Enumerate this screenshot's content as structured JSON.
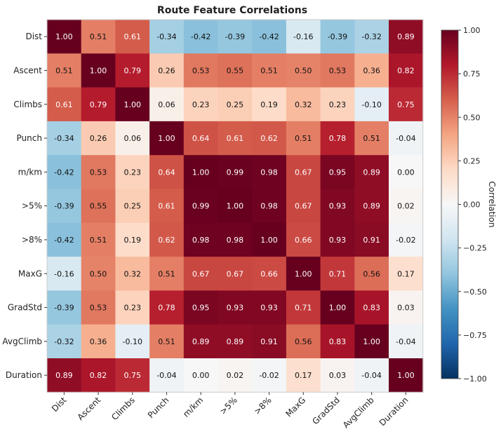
{
  "chart_data": {
    "type": "heatmap",
    "title": "Route Feature Correlations",
    "row_labels": [
      "Dist",
      "Ascent",
      "Climbs",
      "Punch",
      "m/km",
      ">5%",
      ">8%",
      "MaxG",
      "GradStd",
      "AvgClimb",
      "Duration"
    ],
    "col_labels": [
      "Dist",
      "Ascent",
      "Climbs",
      "Punch",
      "m/km",
      ">5%",
      ">8%",
      "MaxG",
      "GradStd",
      "AvgClimb",
      "Duration"
    ],
    "values": [
      [
        1.0,
        0.51,
        0.61,
        -0.34,
        -0.42,
        -0.39,
        -0.42,
        -0.16,
        -0.39,
        -0.32,
        0.89
      ],
      [
        0.51,
        1.0,
        0.79,
        0.26,
        0.53,
        0.55,
        0.51,
        0.5,
        0.53,
        0.36,
        0.82
      ],
      [
        0.61,
        0.79,
        1.0,
        0.06,
        0.23,
        0.25,
        0.19,
        0.32,
        0.23,
        -0.1,
        0.75
      ],
      [
        -0.34,
        0.26,
        0.06,
        1.0,
        0.64,
        0.61,
        0.62,
        0.51,
        0.78,
        0.51,
        -0.04
      ],
      [
        -0.42,
        0.53,
        0.23,
        0.64,
        1.0,
        0.99,
        0.98,
        0.67,
        0.95,
        0.89,
        0.0
      ],
      [
        -0.39,
        0.55,
        0.25,
        0.61,
        0.99,
        1.0,
        0.98,
        0.67,
        0.93,
        0.89,
        0.02
      ],
      [
        -0.42,
        0.51,
        0.19,
        0.62,
        0.98,
        0.98,
        1.0,
        0.66,
        0.93,
        0.91,
        -0.02
      ],
      [
        -0.16,
        0.5,
        0.32,
        0.51,
        0.67,
        0.67,
        0.66,
        1.0,
        0.71,
        0.56,
        0.17
      ],
      [
        -0.39,
        0.53,
        0.23,
        0.78,
        0.95,
        0.93,
        0.93,
        0.71,
        1.0,
        0.83,
        0.03
      ],
      [
        -0.32,
        0.36,
        -0.1,
        0.51,
        0.89,
        0.89,
        0.91,
        0.56,
        0.83,
        1.0,
        -0.04
      ],
      [
        0.89,
        0.82,
        0.75,
        -0.04,
        0.0,
        0.02,
        -0.02,
        0.17,
        0.03,
        -0.04,
        1.0
      ]
    ],
    "colormap": "RdBu_r",
    "vmin": -1.0,
    "vmax": 1.0,
    "colorbar": {
      "label": "Correlation",
      "ticks": [
        1.0,
        0.75,
        0.5,
        0.25,
        0.0,
        -0.25,
        -0.5,
        -0.75,
        -1.0
      ],
      "tick_labels": [
        "1.00",
        "0.75",
        "0.50",
        "0.25",
        "0.00",
        "−0.25",
        "−0.50",
        "−0.75",
        "−1.00"
      ]
    },
    "colormap_stops": [
      "#053061",
      "#2166ac",
      "#4393c3",
      "#92c5de",
      "#d1e5f0",
      "#f7f7f7",
      "#fddbc7",
      "#f4a582",
      "#d6604d",
      "#b2182b",
      "#67001f"
    ],
    "grid": false
  }
}
